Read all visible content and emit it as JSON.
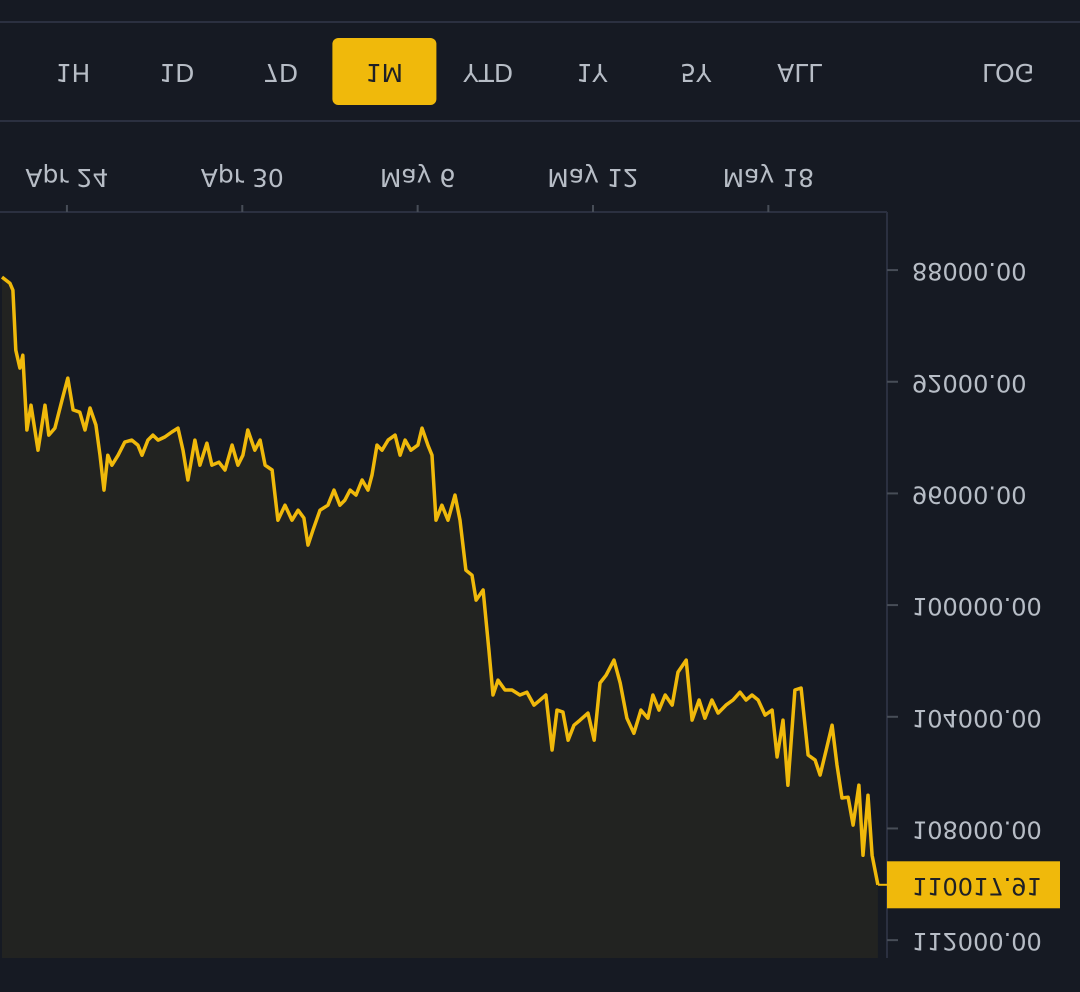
{
  "toolbar": {
    "ranges": [
      "1H",
      "1D",
      "7D",
      "1M",
      "YTD",
      "1Y",
      "5Y",
      "ALL"
    ],
    "selected": "1M",
    "scale_toggle": "LOG"
  },
  "chart_data": {
    "type": "line",
    "color": "#f0b90b",
    "x": [
      -2.22,
      -1.95,
      -1.85,
      -1.75,
      -1.61,
      -1.51,
      -1.37,
      -1.23,
      -0.99,
      -0.75,
      -0.62,
      -0.41,
      -0.17,
      0.03,
      0.21,
      0.44,
      0.62,
      0.79,
      0.99,
      1.13,
      1.27,
      1.4,
      1.54,
      1.75,
      1.98,
      2.22,
      2.43,
      2.57,
      2.77,
      2.94,
      3.12,
      3.35,
      3.59,
      3.8,
      3.97,
      4.14,
      4.38,
      4.55,
      4.79,
      4.96,
      5.2,
      5.41,
      5.65,
      5.85,
      6.02,
      6.19,
      6.43,
      6.61,
      6.78,
      7.02,
      7.22,
      7.46,
      7.7,
      7.91,
      8.11,
      8.25,
      8.42,
      8.66,
      8.93,
      9.14,
      9.34,
      9.51,
      9.69,
      9.89,
      10.1,
      10.3,
      10.44,
      10.61,
      10.78,
      10.99,
      11.23,
      11.4,
      11.57,
      11.77,
      12.01,
      12.15,
      12.35,
      12.49,
      12.63,
      12.83,
      13.04,
      13.28,
      13.45,
      13.65,
      13.86,
      14.0,
      14.24,
      14.44,
      14.58,
      14.75,
      14.99,
      15.23,
      15.5,
      15.74,
      15.98,
      16.19,
      16.39,
      16.6,
      16.77,
      16.97,
      17.15,
      17.35,
      17.56,
      17.83,
      18.04,
      18.24,
      18.45,
      18.72,
      18.93,
      19.16,
      19.4,
      19.64,
      19.88,
      20.05,
      20.26,
      20.47,
      20.71,
      20.91,
      21.19,
      21.39,
      21.63,
      21.83,
      22.07,
      22.28,
      22.55,
      22.79,
      23.03,
      23.24,
      23.44,
      23.65,
      23.89,
      24.13,
      24.3,
      24.5,
      24.67,
      24.91,
      25.12,
      25.36,
      25.6,
      25.77,
      25.98,
      26.18,
      26.35,
      26.52,
      26.73,
      26.9,
      27.1,
      27.24,
      27.41,
      27.55,
      27.75
    ],
    "values": [
      88250,
      88470,
      88720,
      90870,
      91510,
      91050,
      93730,
      92840,
      94450,
      92840,
      93910,
      93660,
      92660,
      91870,
      93010,
      93090,
      93730,
      92940,
      93550,
      94630,
      95880,
      94630,
      94990,
      94630,
      94160,
      94090,
      94270,
      94630,
      94090,
      93910,
      94090,
      93980,
      93800,
      93660,
      94450,
      95520,
      94090,
      94990,
      94200,
      94990,
      94880,
      95160,
      94270,
      94990,
      94630,
      93730,
      94450,
      94090,
      94990,
      95160,
      96960,
      96420,
      96960,
      96600,
      96880,
      97850,
      97310,
      96600,
      96420,
      95880,
      96420,
      96240,
      95880,
      96060,
      95520,
      95880,
      95340,
      94270,
      94450,
      94090,
      93910,
      94630,
      94090,
      94450,
      94270,
      93660,
      94270,
      94630,
      96960,
      96420,
      96960,
      96060,
      96960,
      98750,
      98930,
      99820,
      99460,
      101610,
      103220,
      102690,
      103040,
      103040,
      103220,
      103120,
      103580,
      103400,
      103220,
      105190,
      103760,
      103830,
      104840,
      104300,
      104120,
      103870,
      104840,
      102790,
      102510,
      101970,
      102790,
      104050,
      104590,
      103760,
      104050,
      103220,
      103760,
      103220,
      103580,
      102400,
      101970,
      104120,
      103400,
      104050,
      103400,
      103870,
      103580,
      103400,
      103120,
      103400,
      103220,
      103400,
      103940,
      103760,
      105440,
      104120,
      106450,
      103040,
      102970,
      105370,
      105550,
      106090,
      105190,
      104300,
      105730,
      106910,
      106880,
      107880,
      106450,
      108960,
      106810,
      108960,
      110017.91
    ],
    "xlim": [
      -2.29,
      28.06
    ],
    "xticks": [
      {
        "value": 0,
        "label": "Apr 24"
      },
      {
        "value": 6,
        "label": "Apr 30"
      },
      {
        "value": 12,
        "label": "May 6"
      },
      {
        "value": 18,
        "label": "May 12"
      },
      {
        "value": 24,
        "label": "May 18"
      }
    ],
    "ylim": [
      85920,
      112640
    ],
    "yticks": [
      {
        "value": 88000,
        "label": "88000.00"
      },
      {
        "value": 92000,
        "label": "92000.00"
      },
      {
        "value": 96000,
        "label": "96000.00"
      },
      {
        "value": 100000,
        "label": "100000.00"
      },
      {
        "value": 104000,
        "label": "104000.00"
      },
      {
        "value": 108000,
        "label": "108000.00"
      },
      {
        "value": 112000,
        "label": "112000.00"
      }
    ]
  }
}
